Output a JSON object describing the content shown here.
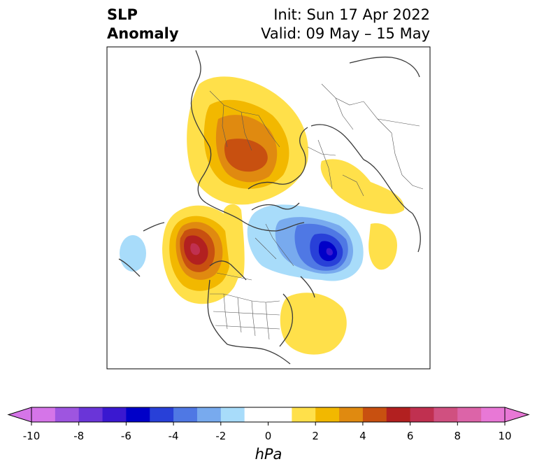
{
  "title": {
    "line1": "SLP",
    "line2": "Anomaly",
    "init": "Init: Sun 17 Apr 2022",
    "valid": "Valid: 09 May – 15 May"
  },
  "colorbar": {
    "unit": "hPa",
    "ticks": [
      "-10",
      "-8",
      "-6",
      "-4",
      "-2",
      "0",
      "2",
      "4",
      "6",
      "8",
      "10"
    ],
    "colors": [
      "#d575e8",
      "#9e55e0",
      "#6a35d8",
      "#3a18d0",
      "#0000c8",
      "#2840d8",
      "#4f78e4",
      "#78aaee",
      "#a8dcfa",
      "#ffffff",
      "#ffffff",
      "#ffe04a",
      "#f2b800",
      "#e08a10",
      "#c85010",
      "#b22020",
      "#c03050",
      "#d05080",
      "#dc64a8",
      "#e878d6"
    ],
    "under_color": "#d575e8",
    "over_color": "#e878d6"
  }
}
